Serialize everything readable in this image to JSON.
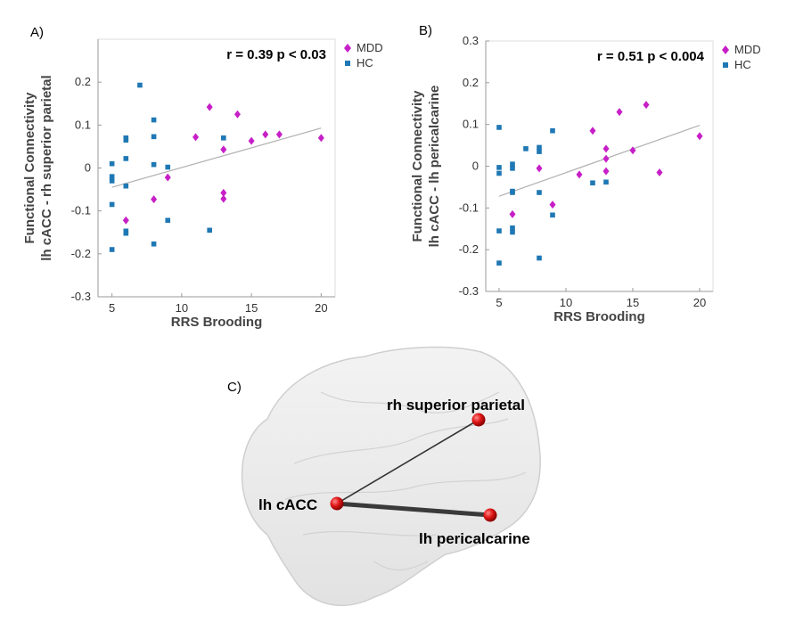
{
  "panels": {
    "a": "A)",
    "b": "B)",
    "c": "C)"
  },
  "chart_data": [
    {
      "type": "scatter",
      "xlabel": "RRS Brooding",
      "ylabel_lines": [
        "Functional Connectivity",
        "lh cACC - rh superior parietal"
      ],
      "xlim": [
        4,
        21
      ],
      "ylim": [
        -0.3,
        0.3
      ],
      "xticks": [
        5,
        10,
        15,
        20
      ],
      "yticks": [
        -0.3,
        -0.2,
        -0.1,
        0,
        0.1,
        0.2
      ],
      "ytick_labels": [
        "-0.3",
        "-0.2",
        "-0.1",
        "0",
        "0.1",
        "0.2"
      ],
      "annotation": "r = 0.39 p < 0.03",
      "legend": [
        "MDD",
        "HC"
      ],
      "colors": {
        "MDD": "#c71fc7",
        "HC": "#1f78b4",
        "fit": "#b0b0b0"
      },
      "fit_line": {
        "x": [
          5,
          20
        ],
        "y": [
          -0.045,
          0.093
        ]
      },
      "series": [
        {
          "name": "MDD",
          "marker": "diamond",
          "x": [
            6,
            8,
            9,
            11,
            12,
            13,
            13,
            13,
            14,
            15,
            16,
            17,
            20
          ],
          "y": [
            -0.122,
            -0.073,
            -0.022,
            0.072,
            0.142,
            0.043,
            -0.058,
            -0.072,
            0.125,
            0.063,
            0.078,
            0.078,
            0.07
          ]
        },
        {
          "name": "HC",
          "marker": "square",
          "x": [
            5,
            5,
            5,
            5,
            5,
            6,
            6,
            6,
            6,
            6,
            6,
            7,
            8,
            8,
            8,
            8,
            9,
            9,
            12,
            13
          ],
          "y": [
            0.01,
            -0.02,
            -0.03,
            -0.085,
            -0.19,
            0.07,
            0.065,
            0.022,
            -0.042,
            -0.147,
            -0.152,
            0.193,
            0.112,
            0.073,
            0.008,
            -0.177,
            0.002,
            -0.122,
            -0.145,
            0.07
          ]
        }
      ]
    },
    {
      "type": "scatter",
      "xlabel": "RRS Brooding",
      "ylabel_lines": [
        "Functional Connectivity",
        "lh cACC - lh pericalcarine"
      ],
      "xlim": [
        4,
        21
      ],
      "ylim": [
        -0.3,
        0.3
      ],
      "xticks": [
        5,
        10,
        15,
        20
      ],
      "yticks": [
        -0.3,
        -0.2,
        -0.1,
        0,
        0.1,
        0.2,
        0.3
      ],
      "ytick_labels": [
        "-0.3",
        "-0.2",
        "-0.1",
        "0",
        "0.1",
        "0.2",
        "0.3"
      ],
      "annotation": "r = 0.51 p < 0.004",
      "legend": [
        "MDD",
        "HC"
      ],
      "colors": {
        "MDD": "#c71fc7",
        "HC": "#1f78b4",
        "fit": "#b0b0b0"
      },
      "fit_line": {
        "x": [
          5,
          20
        ],
        "y": [
          -0.072,
          0.098
        ]
      },
      "series": [
        {
          "name": "MDD",
          "marker": "diamond",
          "x": [
            6,
            8,
            9,
            11,
            12,
            13,
            13,
            13,
            14,
            15,
            16,
            17,
            20
          ],
          "y": [
            -0.115,
            -0.005,
            -0.092,
            -0.02,
            0.085,
            0.042,
            0.018,
            -0.012,
            0.13,
            0.038,
            0.147,
            -0.015,
            0.072
          ]
        },
        {
          "name": "HC",
          "marker": "square",
          "x": [
            5,
            5,
            5,
            5,
            5,
            6,
            6,
            6,
            6,
            6,
            6,
            7,
            8,
            8,
            8,
            8,
            9,
            9,
            12,
            13
          ],
          "y": [
            0.093,
            -0.003,
            -0.017,
            -0.155,
            -0.232,
            0.005,
            -0.005,
            -0.06,
            -0.063,
            -0.148,
            -0.158,
            0.042,
            0.045,
            0.035,
            -0.063,
            -0.22,
            0.085,
            -0.117,
            -0.04,
            -0.038
          ]
        }
      ]
    }
  ],
  "brain": {
    "nodes": [
      {
        "id": "lh-cacc",
        "label": "lh cACC"
      },
      {
        "id": "rh-superior-parietal",
        "label": "rh superior parietal"
      },
      {
        "id": "lh-pericalcarine",
        "label": "lh pericalcarine"
      }
    ],
    "edges": [
      {
        "from": "lh-cacc",
        "to": "rh-superior-parietal",
        "weight": "thin"
      },
      {
        "from": "lh-cacc",
        "to": "lh-pericalcarine",
        "weight": "thick"
      }
    ],
    "colors": {
      "node": "#e02020",
      "edge": "#333333",
      "brain": "#dcdcdc"
    }
  }
}
